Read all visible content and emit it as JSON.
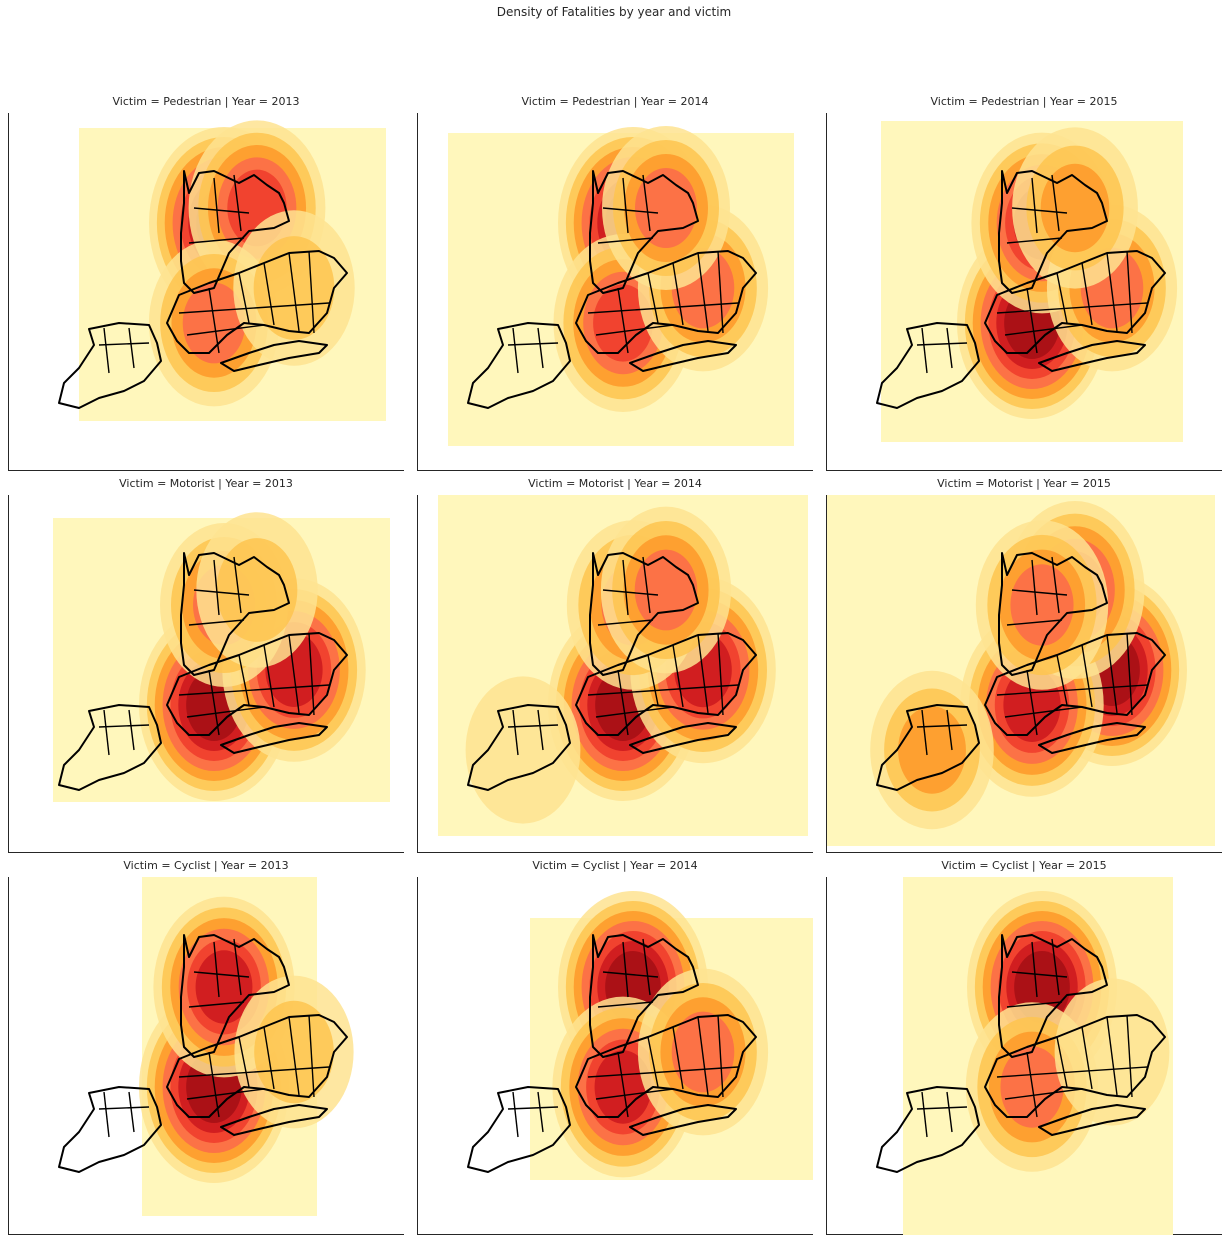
{
  "chart_data": {
    "type": "heatmap",
    "kind": "kde-density-map",
    "title": "Density of Fatalities by year and victim",
    "row_variable": "Victim",
    "col_variable": "Year",
    "cmap": "YlOrRd",
    "colors": {
      "low": "#fff7bc",
      "mid": "#fd8d3c",
      "high": "#a50f15",
      "outline": "#000000"
    },
    "facets": [
      {
        "title": "Victim = Pedestrian | Year = 2013",
        "victim": "Pedestrian",
        "year": 2013,
        "hotspots": [
          {
            "area": "Manhattan",
            "intensity": 1.0
          },
          {
            "area": "Bronx",
            "intensity": 0.7
          },
          {
            "area": "Brooklyn",
            "intensity": 0.55
          },
          {
            "area": "Queens",
            "intensity": 0.35
          }
        ]
      },
      {
        "title": "Victim = Pedestrian | Year = 2014",
        "victim": "Pedestrian",
        "year": 2014,
        "hotspots": [
          {
            "area": "Manhattan",
            "intensity": 1.0
          },
          {
            "area": "Brooklyn",
            "intensity": 0.75
          },
          {
            "area": "Queens",
            "intensity": 0.55
          },
          {
            "area": "Bronx",
            "intensity": 0.5
          }
        ]
      },
      {
        "title": "Victim = Pedestrian | Year = 2015",
        "victim": "Pedestrian",
        "year": 2015,
        "hotspots": [
          {
            "area": "Brooklyn",
            "intensity": 1.0
          },
          {
            "area": "Manhattan",
            "intensity": 0.8
          },
          {
            "area": "Queens",
            "intensity": 0.55
          },
          {
            "area": "Bronx",
            "intensity": 0.45
          }
        ]
      },
      {
        "title": "Victim = Motorist | Year = 2013",
        "victim": "Motorist",
        "year": 2013,
        "hotspots": [
          {
            "area": "Brooklyn",
            "intensity": 1.0
          },
          {
            "area": "Queens",
            "intensity": 0.85
          },
          {
            "area": "Manhattan",
            "intensity": 0.5
          },
          {
            "area": "Bronx",
            "intensity": 0.35
          }
        ]
      },
      {
        "title": "Victim = Motorist | Year = 2014",
        "victim": "Motorist",
        "year": 2014,
        "hotspots": [
          {
            "area": "Brooklyn",
            "intensity": 1.0
          },
          {
            "area": "Queens",
            "intensity": 0.9
          },
          {
            "area": "Manhattan",
            "intensity": 0.6
          },
          {
            "area": "Bronx",
            "intensity": 0.55
          },
          {
            "area": "Staten Island",
            "intensity": 0.2
          }
        ]
      },
      {
        "title": "Victim = Motorist | Year = 2015",
        "victim": "Motorist",
        "year": 2015,
        "hotspots": [
          {
            "area": "Queens",
            "intensity": 1.0
          },
          {
            "area": "Brooklyn",
            "intensity": 0.85
          },
          {
            "area": "Bronx",
            "intensity": 0.75
          },
          {
            "area": "Manhattan",
            "intensity": 0.6
          },
          {
            "area": "Staten Island",
            "intensity": 0.4
          }
        ]
      },
      {
        "title": "Victim = Cyclist | Year = 2013",
        "victim": "Cyclist",
        "year": 2013,
        "hotspots": [
          {
            "area": "Brooklyn",
            "intensity": 1.0
          },
          {
            "area": "Manhattan",
            "intensity": 0.8
          },
          {
            "area": "Queens",
            "intensity": 0.3
          }
        ]
      },
      {
        "title": "Victim = Cyclist | Year = 2014",
        "victim": "Cyclist",
        "year": 2014,
        "hotspots": [
          {
            "area": "Manhattan",
            "intensity": 1.0
          },
          {
            "area": "Brooklyn",
            "intensity": 0.8
          },
          {
            "area": "Queens",
            "intensity": 0.55
          }
        ]
      },
      {
        "title": "Victim = Cyclist | Year = 2015",
        "victim": "Cyclist",
        "year": 2015,
        "hotspots": [
          {
            "area": "Manhattan",
            "intensity": 1.0
          },
          {
            "area": "Brooklyn",
            "intensity": 0.6
          },
          {
            "area": "Queens",
            "intensity": 0.2
          }
        ]
      }
    ]
  }
}
